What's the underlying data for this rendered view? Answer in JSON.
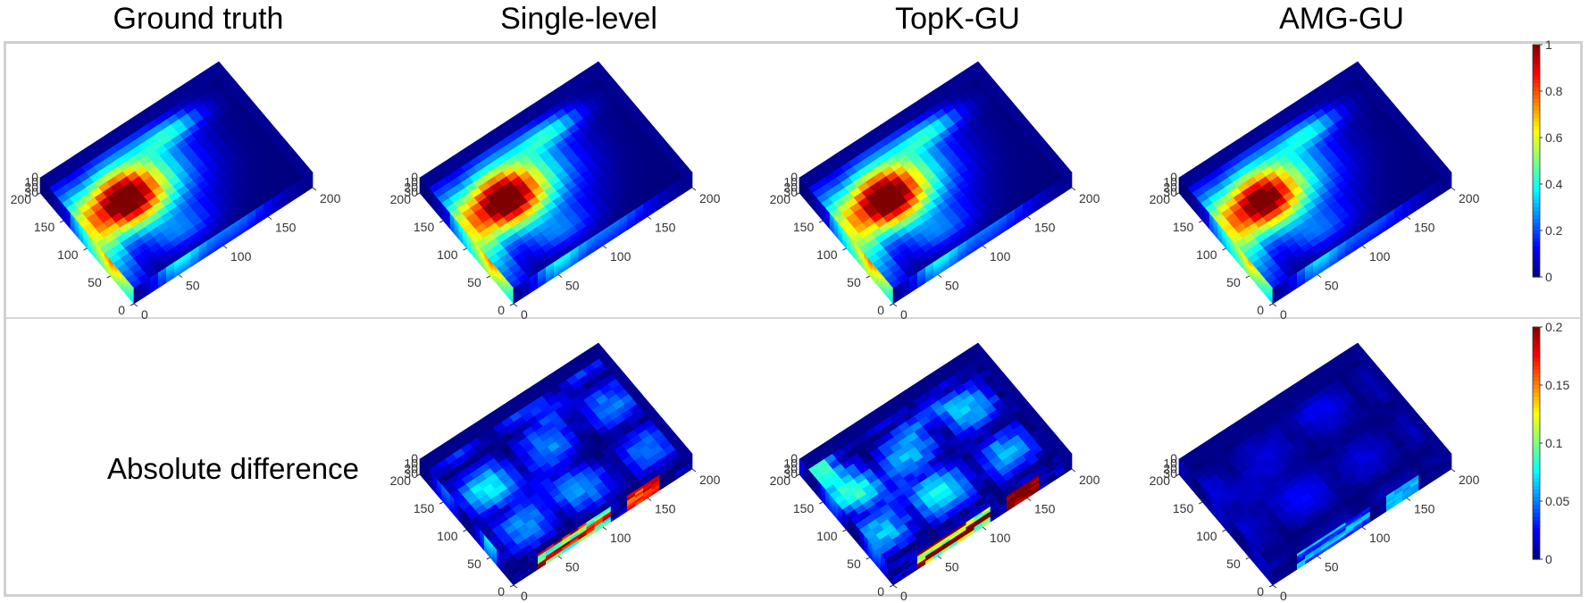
{
  "figure": {
    "column_titles": [
      "Ground truth",
      "Single-level",
      "TopK-GU",
      "AMG-GU"
    ],
    "row_label": "Absolute difference"
  },
  "colors": {
    "frame": "#d0d0d0",
    "background": "#00008f",
    "jet": [
      "#00007f",
      "#0000ff",
      "#007fff",
      "#00ffff",
      "#7fff7f",
      "#ffff00",
      "#ff7f00",
      "#ff0000",
      "#7f0000"
    ]
  },
  "chart_data": [
    {
      "type": "heatmap",
      "title": "Ground truth",
      "variable": "field",
      "clim": [
        0,
        1
      ],
      "axes": {
        "x_ticks": [
          "0",
          "50",
          "100",
          "150",
          "200"
        ],
        "y_ticks": [
          "0",
          "50",
          "100",
          "150",
          "200"
        ],
        "z_ticks": [
          "0",
          "10",
          "20",
          "30"
        ]
      },
      "features": {
        "main_peak": 1.0,
        "side_face_max": 0.75,
        "front_face_max": 0.45
      }
    },
    {
      "type": "heatmap",
      "title": "Single-level",
      "variable": "field",
      "clim": [
        0,
        1
      ],
      "axes": {
        "x_ticks": [
          "0",
          "50",
          "100",
          "150",
          "200"
        ],
        "y_ticks": [
          "0",
          "50",
          "100",
          "150",
          "200"
        ],
        "z_ticks": [
          "0",
          "10",
          "20",
          "30"
        ]
      },
      "features": {
        "main_peak": 1.0,
        "side_face_max": 0.75,
        "front_face_max": 0.45
      }
    },
    {
      "type": "heatmap",
      "title": "TopK-GU",
      "variable": "field",
      "clim": [
        0,
        1
      ],
      "axes": {
        "x_ticks": [
          "0",
          "50",
          "100",
          "150",
          "200"
        ],
        "y_ticks": [
          "0",
          "50",
          "100",
          "150",
          "200"
        ],
        "z_ticks": [
          "0",
          "10",
          "20",
          "30"
        ]
      },
      "features": {
        "main_peak": 1.0,
        "side_face_max": 0.75,
        "front_face_max": 0.4
      }
    },
    {
      "type": "heatmap",
      "title": "AMG-GU",
      "variable": "field",
      "clim": [
        0,
        1
      ],
      "axes": {
        "x_ticks": [
          "0",
          "50",
          "100",
          "150",
          "200"
        ],
        "y_ticks": [
          "0",
          "50",
          "100",
          "150",
          "200"
        ],
        "z_ticks": [
          "0",
          "10",
          "20",
          "30"
        ]
      },
      "features": {
        "main_peak": 0.95,
        "side_face_max": 0.7,
        "front_face_max": 0.4
      }
    },
    {
      "type": "heatmap",
      "title": "Absolute difference — Single-level",
      "variable": "abs_error",
      "clim": [
        0,
        0.2
      ],
      "axes": {
        "x_ticks": [
          "0",
          "50",
          "100",
          "150",
          "200"
        ],
        "y_ticks": [
          "0",
          "50",
          "100",
          "150",
          "200"
        ],
        "z_ticks": [
          "0",
          "10",
          "20",
          "30"
        ]
      },
      "features": {
        "max_error": 0.2,
        "front_face_max": 0.2
      }
    },
    {
      "type": "heatmap",
      "title": "Absolute difference — TopK-GU",
      "variable": "abs_error",
      "clim": [
        0,
        0.2
      ],
      "axes": {
        "x_ticks": [
          "0",
          "50",
          "100",
          "150",
          "200"
        ],
        "y_ticks": [
          "0",
          "50",
          "100",
          "150",
          "200"
        ],
        "z_ticks": [
          "0",
          "10",
          "20",
          "30"
        ]
      },
      "features": {
        "max_error": 0.2,
        "front_face_max": 0.2
      }
    },
    {
      "type": "heatmap",
      "title": "Absolute difference — AMG-GU",
      "variable": "abs_error",
      "clim": [
        0,
        0.2
      ],
      "axes": {
        "x_ticks": [
          "0",
          "50",
          "100",
          "150",
          "200"
        ],
        "y_ticks": [
          "0",
          "50",
          "100",
          "150",
          "200"
        ],
        "z_ticks": [
          "0",
          "10",
          "20",
          "30"
        ]
      },
      "features": {
        "max_error": 0.06,
        "front_face_max": 0.06
      }
    }
  ],
  "colorbars": [
    {
      "range": [
        0,
        1
      ],
      "ticks": [
        "0",
        "0.2",
        "0.4",
        "0.6",
        "0.8",
        "1"
      ]
    },
    {
      "range": [
        0,
        0.2
      ],
      "ticks": [
        "0",
        "0.05",
        "0.1",
        "0.15",
        "0.2"
      ]
    }
  ]
}
